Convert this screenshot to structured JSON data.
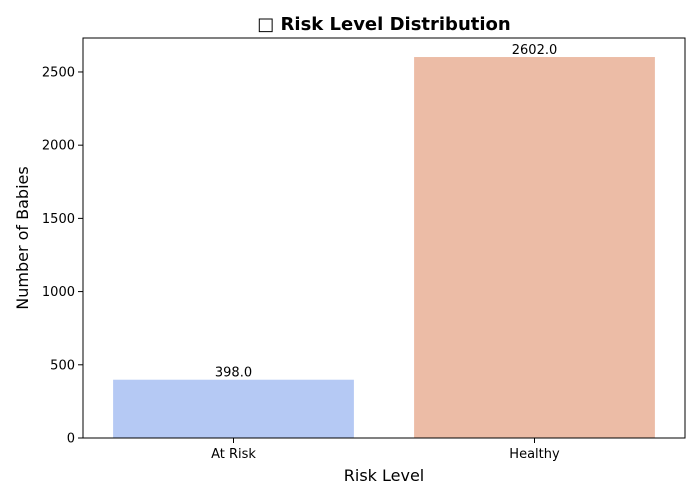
{
  "chart_data": {
    "type": "bar",
    "title": "□ Risk Level Distribution",
    "xlabel": "Risk Level",
    "ylabel": "Number of Babies",
    "categories": [
      "At Risk",
      "Healthy"
    ],
    "values": [
      398.0,
      2602.0
    ],
    "data_labels": [
      "398.0",
      "2602.0"
    ],
    "colors": [
      "#b5c9f4",
      "#ecbca6"
    ],
    "ylim": [
      0,
      2732
    ],
    "yticks": [
      0,
      500,
      1000,
      1500,
      2000,
      2500
    ],
    "ytick_labels": [
      "0",
      "500",
      "1000",
      "1500",
      "2000",
      "2500"
    ],
    "grid": false,
    "legend": "none"
  }
}
